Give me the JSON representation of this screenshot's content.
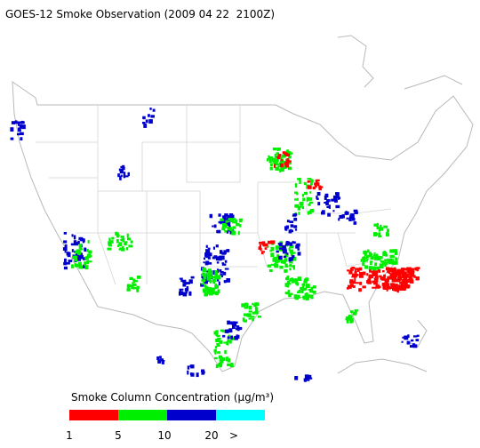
{
  "title": "GOES-12 Smoke Observation (2009 04 22  2100Z)",
  "legend": {
    "title": "Smoke Column Concentration (μg/m³)",
    "colors": [
      "#ff0000",
      "#00ee00",
      "#0000cc",
      "#00ffff"
    ],
    "labels": [
      "1",
      "5",
      "10",
      "20",
      ">"
    ]
  }
}
